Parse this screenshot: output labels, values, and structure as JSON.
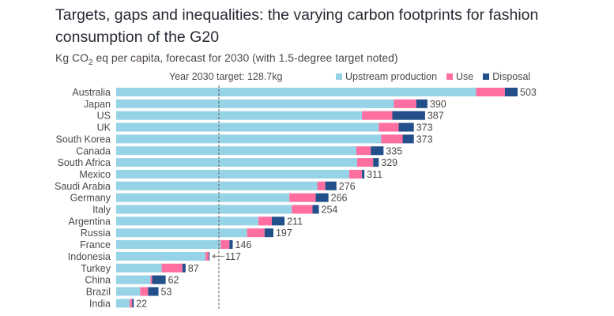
{
  "header": {
    "title": "Targets, gaps and inequalities: the varying carbon footprints for fashion consumption of the G20",
    "subtitle_pre": "Kg CO",
    "subtitle_sub": "2",
    "subtitle_post": " eq per capita, forecast for 2030 (with 1.5-degree target noted)"
  },
  "chart_data": {
    "type": "bar",
    "orientation": "horizontal",
    "stacked": true,
    "title": "Targets, gaps and inequalities: the varying carbon footprints for fashion consumption of the G20",
    "subtitle": "Kg CO2 eq per capita, forecast for 2030 (with 1.5-degree target noted)",
    "xlabel": "",
    "ylabel": "",
    "xlim": [
      0,
      503
    ],
    "grid": false,
    "legend_position": "top-right",
    "target": {
      "label": "Year 2030 target: 128.7kg",
      "value": 128.7
    },
    "categories": [
      "Australia",
      "Japan",
      "US",
      "UK",
      "South Korea",
      "Canada",
      "South Africa",
      "Mexico",
      "Saudi Arabia",
      "Germany",
      "Italy",
      "Argentina",
      "Russia",
      "France",
      "Indonesia",
      "Turkey",
      "China",
      "Brazil",
      "India"
    ],
    "totals": [
      503,
      390,
      387,
      373,
      373,
      335,
      329,
      311,
      276,
      266,
      254,
      211,
      197,
      146,
      117,
      87,
      62,
      53,
      22
    ],
    "series": [
      {
        "name": "Upstream production",
        "color": "#96d3e6",
        "values": [
          451,
          348,
          308,
          329,
          332,
          301,
          302,
          292,
          252,
          217,
          220,
          178,
          164,
          131,
          112,
          57,
          43,
          30,
          17
        ]
      },
      {
        "name": "Use",
        "color": "#ff6ea0",
        "values": [
          36,
          28,
          38,
          25,
          27,
          18,
          20,
          16,
          10,
          33,
          26,
          17,
          22,
          11,
          4,
          26,
          2,
          10,
          3
        ]
      },
      {
        "name": "Disposal",
        "color": "#23508a",
        "values": [
          16,
          14,
          41,
          19,
          14,
          16,
          7,
          3,
          14,
          16,
          8,
          16,
          11,
          4,
          1,
          4,
          17,
          13,
          2
        ]
      }
    ],
    "annotations": [
      {
        "category": "Indonesia",
        "type": "arrow-label",
        "text": "117"
      }
    ]
  }
}
